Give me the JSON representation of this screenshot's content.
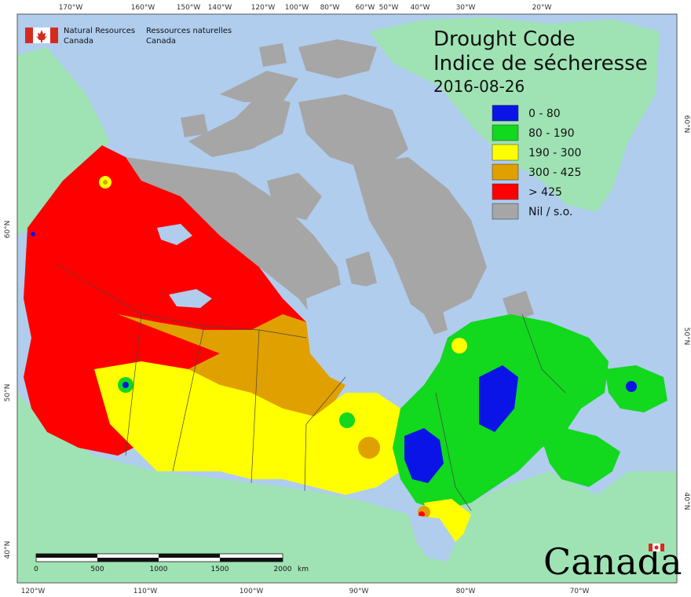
{
  "agency": {
    "en_line1": "Natural Resources",
    "en_line2": "Canada",
    "fr_line1": "Ressources naturelles",
    "fr_line2": "Canada"
  },
  "title": {
    "line1": "Drought Code",
    "line2": "Indice de sécheresse",
    "date": "2016-08-26"
  },
  "legend": [
    {
      "label": "0 - 80",
      "color": "#0a14e6"
    },
    {
      "label": "80 - 190",
      "color": "#12d81e"
    },
    {
      "label": "190 - 300",
      "color": "#ffff00"
    },
    {
      "label": "300 - 425",
      "color": "#e0a000"
    },
    {
      "label": "> 425",
      "color": "#ff0000"
    },
    {
      "label": "Nil / s.o.",
      "color": "#a6a6a6"
    }
  ],
  "colors": {
    "ocean": "#b0cdee",
    "foreign_land": "#9fe3b4",
    "nil": "#a6a6a6"
  },
  "top_ticks": [
    "170°W",
    "160°W",
    "150°W",
    "140°W",
    "120°W",
    "100°W",
    "80°W",
    "60°W",
    "50°W",
    "40°W",
    "30°W",
    "20°W"
  ],
  "bottom_ticks": [
    "120°W",
    "110°W",
    "100°W",
    "90°W",
    "80°W",
    "70°W"
  ],
  "left_ticks": [
    "60°N",
    "50°N",
    "40°N"
  ],
  "right_ticks": [
    "60°N",
    "50°N",
    "40°N"
  ],
  "scale": {
    "ticks": [
      "0",
      "500",
      "1000",
      "1500",
      "2000"
    ],
    "unit": "km"
  },
  "wordmark": "Canada"
}
